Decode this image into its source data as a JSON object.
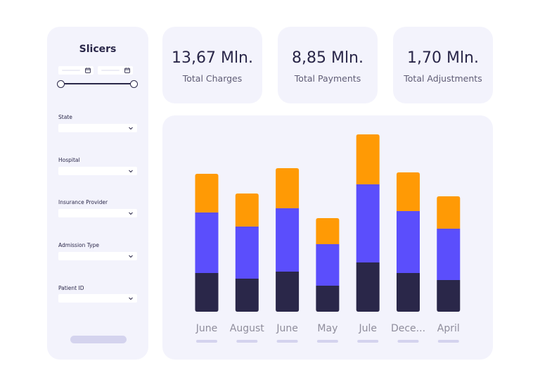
{
  "slicers": {
    "title": "Slicers",
    "filters": [
      {
        "label": "State"
      },
      {
        "label": "Hospital"
      },
      {
        "label": "Insurance Provider"
      },
      {
        "label": "Admission Type"
      },
      {
        "label": "Patient ID"
      }
    ]
  },
  "kpis": [
    {
      "value": "13,67 Mln.",
      "label": "Total Charges"
    },
    {
      "value": "8,85 Mln.",
      "label": "Total Payments"
    },
    {
      "value": "1,70 Mln.",
      "label": "Total Adjustments"
    }
  ],
  "colors": {
    "panel": "#f3f3fc",
    "dark": "#2a2749",
    "purple": "#5b4efc",
    "orange": "#ff9a05",
    "muted_bar": "#d4d3ee",
    "axis_text": "#8f8d9c"
  },
  "chart_data": {
    "type": "bar",
    "stacked": true,
    "categories": [
      "June",
      "August",
      "June",
      "May",
      "Jule",
      "Dece...",
      "April"
    ],
    "series": [
      {
        "values": [
          55,
          47,
          57,
          37,
          70,
          55,
          45
        ],
        "color": "#2a2749"
      },
      {
        "values": [
          86,
          74,
          90,
          59,
          111,
          88,
          73
        ],
        "color": "#5b4efc"
      },
      {
        "values": [
          55,
          47,
          57,
          37,
          71,
          55,
          46
        ],
        "color": "#ff9a05"
      }
    ],
    "ylim": [
      0,
      260
    ],
    "grid": false,
    "legend": "none"
  }
}
